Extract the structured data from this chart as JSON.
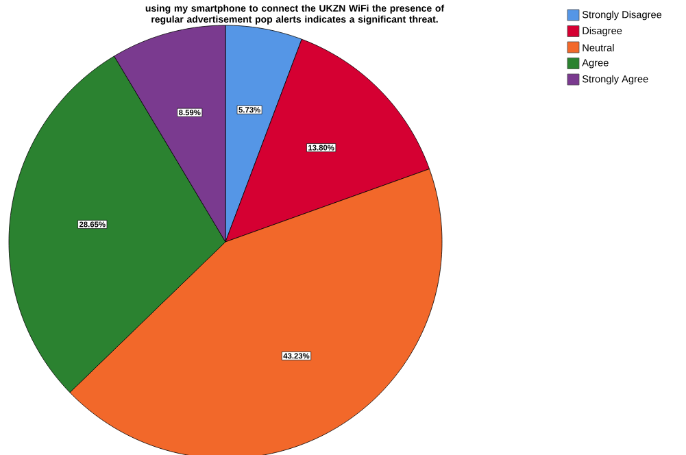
{
  "chart_data": {
    "type": "pie",
    "title": "using my smartphone to connect the UKZN WiFi the presence of regular advertisement pop alerts indicates a significant threat.",
    "categories": [
      "Strongly Disagree",
      "Disagree",
      "Neutral",
      "Agree",
      "Strongly Agree"
    ],
    "values": [
      5.73,
      13.8,
      43.23,
      28.65,
      8.59
    ],
    "value_labels": [
      "5.73%",
      "13.80%",
      "43.23%",
      "28.65%",
      "8.59%"
    ],
    "colors": [
      "#5596e6",
      "#d50032",
      "#f2682a",
      "#2b8230",
      "#7a3a8f"
    ],
    "legend": "top right"
  }
}
